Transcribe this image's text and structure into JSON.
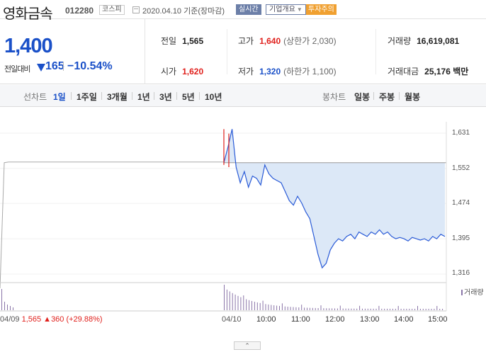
{
  "header": {
    "stock_name": "영화금속",
    "stock_code": "012280",
    "market": "코스피",
    "date_text": "2020.04.10 기준(장마감)",
    "realtime_label": "실시간",
    "company_label": "기업개요",
    "caution_label": "투자주의"
  },
  "summary": {
    "price": "1,400",
    "change_label": "전일대비",
    "change_value": "165",
    "change_rate": "−10.54%",
    "prev_close_label": "전일",
    "prev_close": "1,565",
    "open_label": "시가",
    "open": "1,620",
    "high_label": "고가",
    "high": "1,640",
    "upper_limit": "(상한가 2,030)",
    "low_label": "저가",
    "low": "1,320",
    "lower_limit": "(하한가 1,100)",
    "volume_label": "거래량",
    "volume": "16,619,081",
    "amount_label": "거래대금",
    "amount": "25,176 백만"
  },
  "period_bar": {
    "line_label": "선차트",
    "line_items": [
      "1일",
      "1주일",
      "3개월",
      "1년",
      "3년",
      "5년",
      "10년"
    ],
    "active_index": 0,
    "candle_label": "봉차트",
    "candle_items": [
      "일봉",
      "주봉",
      "월봉"
    ]
  },
  "chart_data": {
    "type": "line",
    "y_ticks": [
      "1,631",
      "1,552",
      "1,474",
      "1,395",
      "1,316"
    ],
    "y_range": [
      1316,
      1631
    ],
    "prev_close": 1565,
    "x_labels": [
      "04/09",
      "04/10",
      "10:00",
      "11:00",
      "12:00",
      "13:00",
      "14:00",
      "15:00"
    ],
    "prev_day_info": {
      "date": "04/09",
      "text": "1,565 ▲360 (+29.88%)"
    },
    "volume_legend": "거래량",
    "series": [
      {
        "values": [
          1565,
          1600,
          1640,
          1555,
          1520,
          1545,
          1510,
          1535,
          1530,
          1515,
          1560,
          1540,
          1530,
          1525,
          1520,
          1500,
          1480,
          1470,
          1490,
          1475,
          1455,
          1440,
          1400,
          1360,
          1330,
          1340,
          1370,
          1385,
          1395,
          1390,
          1400,
          1405,
          1395,
          1410,
          1405,
          1400,
          1410,
          1405,
          1415,
          1405,
          1410,
          1400,
          1395,
          1398,
          1395,
          1390,
          1398,
          1395,
          1392,
          1395,
          1390,
          1400,
          1395,
          1405,
          1400
        ]
      }
    ]
  },
  "collapse_label": "⌃"
}
